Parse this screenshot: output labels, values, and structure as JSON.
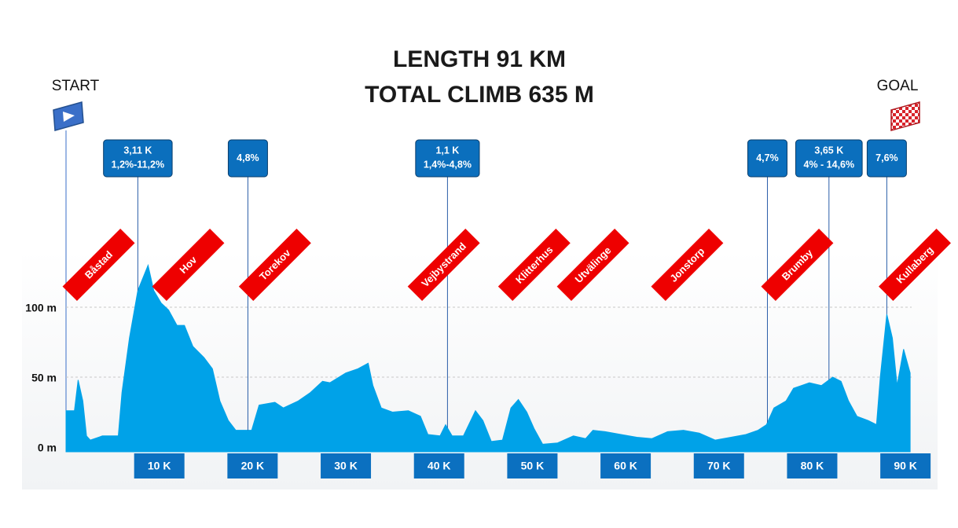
{
  "chart_data": {
    "type": "area",
    "title": [
      "LENGTH 91 KM",
      "TOTAL CLIMB 635 M"
    ],
    "start_label": "START",
    "goal_label": "GOAL",
    "color": "#00a2e8",
    "grid": true,
    "xlim": [
      0,
      91
    ],
    "ylim": [
      0,
      140
    ],
    "yticks": [
      {
        "value": 0,
        "label": "0 m"
      },
      {
        "value": 50,
        "label": "50 m"
      },
      {
        "value": 100,
        "label": "100 m"
      }
    ],
    "xticks": [
      {
        "value": 10,
        "label": "10 K"
      },
      {
        "value": 20,
        "label": "20 K"
      },
      {
        "value": 30,
        "label": "30 K"
      },
      {
        "value": 40,
        "label": "40 K"
      },
      {
        "value": 50,
        "label": "50 K"
      },
      {
        "value": 60,
        "label": "60 K"
      },
      {
        "value": 70,
        "label": "70 K"
      },
      {
        "value": 80,
        "label": "80 K"
      },
      {
        "value": 90,
        "label": "90 K"
      }
    ],
    "x": [
      0,
      0.9,
      1.3,
      1.8,
      2.2,
      2.6,
      3.9,
      5.6,
      6.0,
      6.8,
      7.7,
      8.8,
      9.4,
      10.2,
      11.0,
      11.9,
      12.7,
      13.6,
      14.8,
      15.7,
      16.5,
      17.4,
      18.2,
      19.9,
      20.7,
      22.4,
      23.3,
      24.9,
      26.2,
      27.5,
      28.3,
      30.0,
      31.3,
      32.4,
      32.9,
      33.8,
      35.0,
      36.7,
      38.0,
      38.8,
      40.1,
      40.7,
      41.4,
      42.6,
      43.9,
      44.7,
      45.6,
      46.8,
      47.7,
      48.5,
      49.4,
      50.2,
      51.1,
      52.7,
      54.4,
      55.7,
      56.5,
      57.8,
      59.5,
      61.2,
      62.8,
      64.5,
      66.2,
      67.9,
      69.6,
      71.3,
      72.9,
      74.2,
      75.1,
      75.9,
      77.2,
      78.0,
      79.7,
      81.0,
      82.2,
      83.1,
      83.9,
      84.8,
      86.0,
      86.9,
      87.3,
      88.0,
      88.6,
      89.1,
      89.8,
      90.5
    ],
    "values": [
      26,
      26,
      48,
      33,
      8,
      5,
      8,
      8,
      39,
      78,
      112,
      130,
      112,
      103,
      98,
      87,
      87,
      72,
      64,
      56,
      33,
      19,
      12,
      12,
      30,
      32,
      28,
      33,
      39,
      47,
      46,
      53,
      56,
      60,
      44,
      28,
      25,
      26,
      22,
      9,
      8,
      16,
      8,
      8,
      26,
      19,
      4,
      5,
      28,
      34,
      25,
      13,
      2,
      3,
      8,
      6,
      12,
      11,
      9,
      7,
      6,
      11,
      12,
      10,
      5,
      7,
      9,
      12,
      16,
      28,
      33,
      42,
      46,
      44,
      50,
      47,
      33,
      22,
      19,
      16,
      50,
      95,
      78,
      44,
      70,
      53
    ],
    "places": [
      {
        "name": "Båstad",
        "km": 3.5
      },
      {
        "name": "Hov",
        "km": 13.1
      },
      {
        "name": "Torekov",
        "km": 22.4
      },
      {
        "name": "Vejbystrand",
        "km": 40.5
      },
      {
        "name": "Klitterhus",
        "km": 50.2
      },
      {
        "name": "Utvälinge",
        "km": 56.5
      },
      {
        "name": "Jonstorp",
        "km": 66.6
      },
      {
        "name": "Brumby",
        "km": 78.4
      },
      {
        "name": "Kullaberg",
        "km": 91
      }
    ],
    "climbs": [
      {
        "km": 7.7,
        "lines": [
          "3,11 K",
          "1,2%-11,2%"
        ]
      },
      {
        "km": 19.5,
        "lines": [
          "4,8%"
        ]
      },
      {
        "km": 40.9,
        "lines": [
          "1,1 K",
          "1,4%-4,8%"
        ]
      },
      {
        "km": 75.2,
        "lines": [
          "4,7%"
        ]
      },
      {
        "km": 81.8,
        "lines": [
          "3,65 K",
          "4% - 14,6%"
        ]
      },
      {
        "km": 88.0,
        "lines": [
          "7,6%"
        ]
      }
    ]
  }
}
